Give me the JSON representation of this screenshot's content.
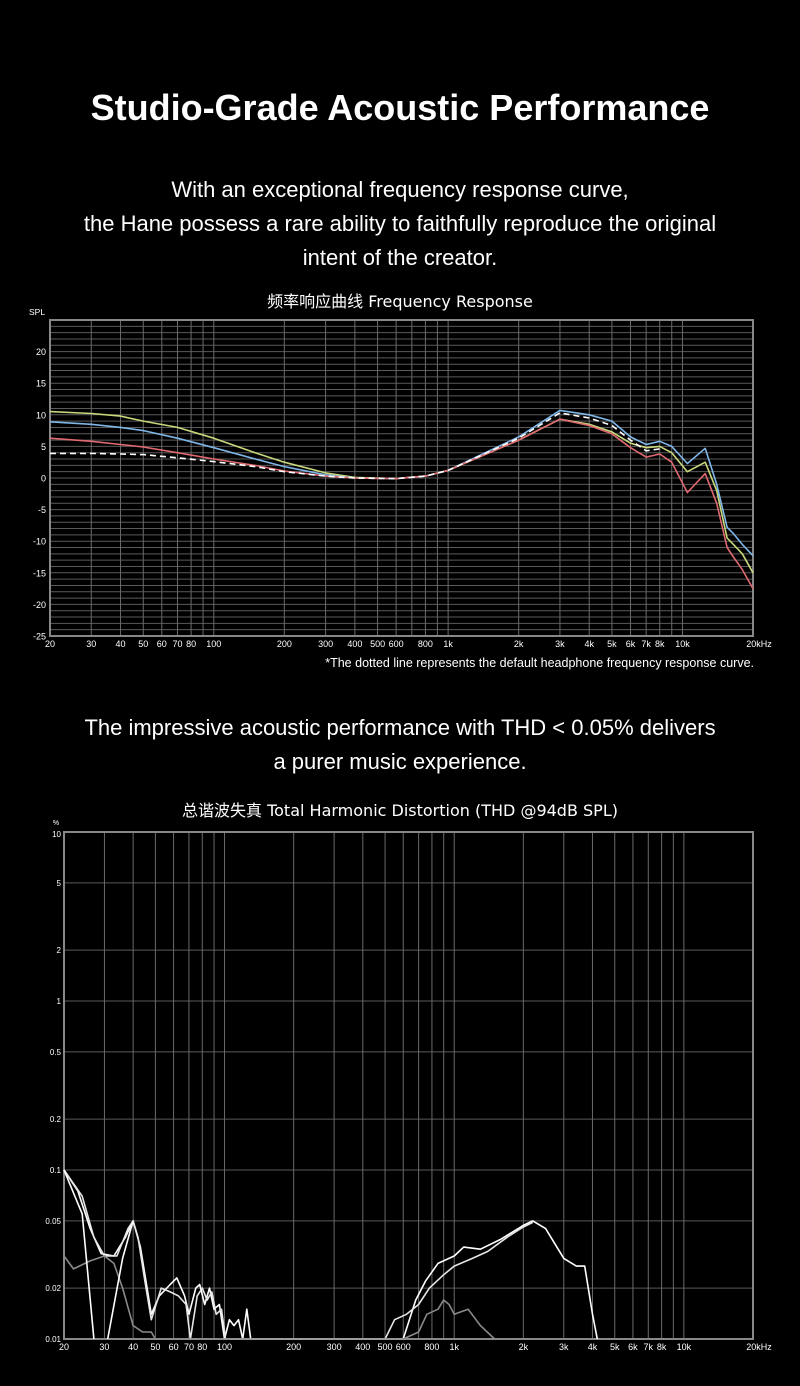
{
  "header": {
    "title": "Studio-Grade Acoustic Performance",
    "intro_lines": [
      "With an exceptional frequency response curve,",
      "the Hane possess a rare ability to faithfully reproduce the original",
      "intent of the creator."
    ],
    "thd_lines": [
      "The impressive acoustic performance with THD < 0.05% delivers",
      "a purer music experience."
    ]
  },
  "chart_data": [
    {
      "type": "line",
      "title": "频率响应曲线  Frequency Response",
      "ylabel": "SPL",
      "xscale": "log",
      "xlim": [
        20,
        20000
      ],
      "ylim": [
        -25,
        25
      ],
      "grid": true,
      "x_tick_labels": [
        "20",
        "30",
        "40",
        "50",
        "60",
        "70",
        "80",
        "100",
        "200",
        "300",
        "400",
        "500",
        "600",
        "800",
        "1k",
        "2k",
        "3k",
        "4k",
        "5k",
        "6k",
        "7k",
        "8k",
        "10k",
        "20kHz"
      ],
      "x_ticks": [
        20,
        30,
        40,
        50,
        60,
        70,
        80,
        100,
        200,
        300,
        400,
        500,
        600,
        800,
        1000,
        2000,
        3000,
        4000,
        5000,
        6000,
        7000,
        8000,
        10000,
        20000
      ],
      "y_ticks": [
        20,
        15,
        10,
        5,
        0,
        -5,
        -10,
        -15,
        -20,
        -25
      ],
      "footnote": "*The dotted line represents the default headphone frequency response curve.",
      "x": [
        20,
        30,
        40,
        50,
        70,
        100,
        150,
        200,
        300,
        400,
        600,
        800,
        1000,
        2000,
        3000,
        4000,
        5000,
        6000,
        7000,
        8000,
        9000,
        10500,
        12500,
        14000,
        15500,
        16500,
        18000,
        20000
      ],
      "series": [
        {
          "color": "#c8d87a",
          "style": "solid",
          "values": [
            10.5,
            10.2,
            9.8,
            9,
            8,
            6.3,
            4,
            2.5,
            0.8,
            0.1,
            -0.1,
            0.3,
            1.2,
            6,
            9.3,
            8.5,
            7.3,
            5.5,
            4.8,
            5,
            4,
            1,
            2.5,
            -2,
            -9.5,
            -10.5,
            -12,
            -15
          ]
        },
        {
          "color": "#7fb6e8",
          "style": "solid",
          "values": [
            8.9,
            8.5,
            8,
            7.5,
            6.3,
            4.8,
            3,
            1.8,
            0.5,
            0,
            -0.1,
            0.3,
            1.2,
            6.5,
            10.7,
            10,
            9,
            6.5,
            5.3,
            5.8,
            5,
            2.3,
            4.7,
            -1,
            -7.8,
            -8.8,
            -10.5,
            -12.3
          ]
        },
        {
          "color": "#e06a70",
          "style": "solid",
          "values": [
            6.3,
            5.8,
            5.3,
            4.9,
            4,
            3,
            2,
            1.1,
            0.3,
            0,
            -0.1,
            0.3,
            1.2,
            6,
            9.3,
            8.3,
            7,
            4.8,
            3.3,
            3.8,
            2.5,
            -2.3,
            0.7,
            -4,
            -11,
            -12.5,
            -14.5,
            -17.5
          ]
        },
        {
          "color": "#ffffff",
          "style": "dashed",
          "values": [
            3.9,
            3.9,
            3.8,
            3.7,
            3.2,
            2.6,
            1.8,
            1,
            0.3,
            0,
            -0.1,
            0.3,
            1.2,
            6.3,
            10.3,
            9.5,
            8.3,
            6,
            4.3,
            4.6,
            null,
            null,
            null,
            null,
            null,
            null,
            null,
            null
          ]
        }
      ]
    },
    {
      "type": "line",
      "title": "总谐波失真  Total Harmonic Distortion (THD  @94dB SPL)",
      "ylabel": "%",
      "xscale": "log",
      "yscale": "log",
      "xlim": [
        20,
        20000
      ],
      "ylim": [
        0.01,
        10
      ],
      "grid": true,
      "x_tick_labels": [
        "20",
        "30",
        "40",
        "50",
        "60",
        "70",
        "80",
        "100",
        "200",
        "300",
        "400",
        "500",
        "600",
        "800",
        "1k",
        "2k",
        "3k",
        "4k",
        "5k",
        "6k",
        "7k",
        "8k",
        "10k",
        "20kHz"
      ],
      "x_ticks": [
        20,
        30,
        40,
        50,
        60,
        70,
        80,
        100,
        200,
        300,
        400,
        500,
        600,
        800,
        1000,
        2000,
        3000,
        4000,
        5000,
        6000,
        7000,
        8000,
        10000,
        20000
      ],
      "y_tick_labels": [
        "10",
        "5",
        "2",
        "1",
        "0.5",
        "0.2",
        "0.1",
        "0.05",
        "0.02",
        "0.01"
      ],
      "y_ticks": [
        10,
        5,
        2,
        1,
        0.5,
        0.2,
        0.1,
        0.05,
        0.02,
        0.01
      ],
      "series": [
        {
          "color": "#ffffff",
          "points": [
            [
              20,
              0.1
            ],
            [
              23,
              0.075
            ],
            [
              26,
              0.045
            ],
            [
              29,
              0.032
            ],
            [
              33,
              0.031
            ],
            [
              37,
              0.04
            ],
            [
              40,
              0.05
            ],
            [
              43,
              0.035
            ],
            [
              46,
              0.02
            ],
            [
              48,
              0.014
            ],
            [
              52,
              0.018
            ],
            [
              58,
              0.021
            ],
            [
              62,
              0.023
            ],
            [
              67,
              0.018
            ],
            [
              70,
              0.014
            ],
            [
              75,
              0.02
            ],
            [
              78,
              0.021
            ],
            [
              82,
              0.016
            ],
            [
              86,
              0.02
            ],
            [
              90,
              0.015
            ],
            [
              95,
              0.016
            ],
            [
              100,
              0.01
            ],
            [
              105,
              0.013
            ],
            [
              110,
              0.012
            ],
            [
              115,
              0.013
            ],
            [
              120,
              0.01
            ],
            [
              125,
              0.015
            ],
            [
              130,
              0.01
            ],
            [
              600,
              0.01
            ],
            [
              680,
              0.017
            ],
            [
              750,
              0.022
            ],
            [
              850,
              0.028
            ],
            [
              1000,
              0.031
            ],
            [
              1100,
              0.035
            ],
            [
              1300,
              0.034
            ],
            [
              1600,
              0.039
            ],
            [
              2000,
              0.047
            ],
            [
              2200,
              0.05
            ],
            [
              2500,
              0.045
            ],
            [
              3000,
              0.03
            ],
            [
              3400,
              0.027
            ],
            [
              3700,
              0.027
            ],
            [
              4000,
              0.014
            ],
            [
              4200,
              0.01
            ]
          ]
        },
        {
          "color": "#e6e6e6",
          "points": [
            [
              20,
              0.1
            ],
            [
              24,
              0.07
            ],
            [
              27,
              0.04
            ],
            [
              30,
              0.031
            ],
            [
              34,
              0.031
            ],
            [
              38,
              0.045
            ],
            [
              40,
              0.05
            ],
            [
              42,
              0.04
            ],
            [
              45,
              0.022
            ],
            [
              48,
              0.013
            ],
            [
              53,
              0.02
            ],
            [
              58,
              0.019
            ],
            [
              63,
              0.018
            ],
            [
              68,
              0.016
            ],
            [
              71,
              0.01
            ],
            [
              76,
              0.018
            ],
            [
              80,
              0.02
            ],
            [
              84,
              0.017
            ],
            [
              88,
              0.019
            ],
            [
              92,
              0.014
            ],
            [
              97,
              0.015
            ],
            [
              101,
              0.01
            ],
            [
              500,
              0.01
            ],
            [
              550,
              0.013
            ],
            [
              620,
              0.014
            ],
            [
              700,
              0.016
            ],
            [
              780,
              0.02
            ],
            [
              900,
              0.024
            ],
            [
              1000,
              0.027
            ],
            [
              1200,
              0.03
            ],
            [
              1400,
              0.033
            ],
            [
              1700,
              0.04
            ],
            [
              2000,
              0.046
            ],
            [
              2200,
              0.049
            ]
          ]
        },
        {
          "color": "#8a8a8a",
          "points": [
            [
              20,
              0.031
            ],
            [
              22,
              0.026
            ],
            [
              26,
              0.029
            ],
            [
              30,
              0.031
            ],
            [
              33,
              0.028
            ],
            [
              36,
              0.02
            ],
            [
              40,
              0.012
            ],
            [
              44,
              0.011
            ],
            [
              48,
              0.011
            ],
            [
              50,
              0.01
            ],
            [
              600,
              0.01
            ],
            [
              700,
              0.011
            ],
            [
              760,
              0.014
            ],
            [
              850,
              0.015
            ],
            [
              900,
              0.017
            ],
            [
              950,
              0.016
            ],
            [
              1000,
              0.014
            ],
            [
              1150,
              0.015
            ],
            [
              1300,
              0.012
            ],
            [
              1500,
              0.01
            ]
          ]
        },
        {
          "color": "#ffffff",
          "points": [
            [
              20,
              0.1
            ],
            [
              24,
              0.055
            ],
            [
              27,
              0.01
            ]
          ]
        },
        {
          "color": "#ffffff",
          "points": [
            [
              31,
              0.01
            ],
            [
              36,
              0.03
            ],
            [
              40,
              0.05
            ]
          ]
        }
      ]
    }
  ]
}
